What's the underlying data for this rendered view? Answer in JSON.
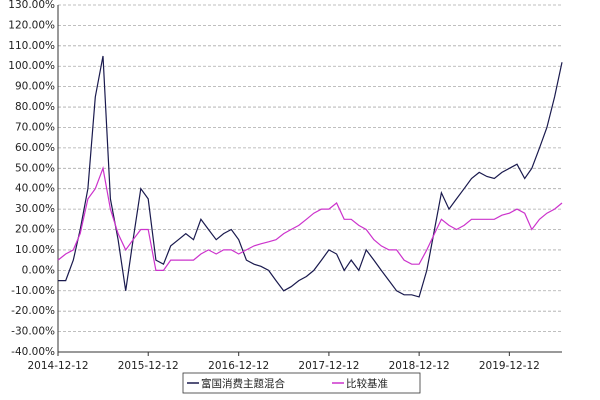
{
  "chart_data": {
    "type": "line",
    "x": [
      "2014-12-12",
      "2015-01-12",
      "2015-02-12",
      "2015-03-12",
      "2015-04-12",
      "2015-05-12",
      "2015-06-12",
      "2015-07-12",
      "2015-08-12",
      "2015-09-12",
      "2015-10-12",
      "2015-11-12",
      "2015-12-12",
      "2016-01-12",
      "2016-02-12",
      "2016-03-12",
      "2016-04-12",
      "2016-05-12",
      "2016-06-12",
      "2016-07-12",
      "2016-08-12",
      "2016-09-12",
      "2016-10-12",
      "2016-11-12",
      "2016-12-12",
      "2017-01-12",
      "2017-02-12",
      "2017-03-12",
      "2017-04-12",
      "2017-05-12",
      "2017-06-12",
      "2017-07-12",
      "2017-08-12",
      "2017-09-12",
      "2017-10-12",
      "2017-11-12",
      "2017-12-12",
      "2018-01-12",
      "2018-02-12",
      "2018-03-12",
      "2018-04-12",
      "2018-05-12",
      "2018-06-12",
      "2018-07-12",
      "2018-08-12",
      "2018-09-12",
      "2018-10-12",
      "2018-11-12",
      "2018-12-12",
      "2019-01-12",
      "2019-02-12",
      "2019-03-12",
      "2019-04-12",
      "2019-05-12",
      "2019-06-12",
      "2019-07-12",
      "2019-08-12",
      "2019-09-12",
      "2019-10-12",
      "2019-11-12",
      "2019-12-12",
      "2020-01-12",
      "2020-02-12",
      "2020-03-12",
      "2020-04-12",
      "2020-05-12",
      "2020-06-12",
      "2020-07-12"
    ],
    "series": [
      {
        "name": "富国消费主题混合",
        "color": "#1a1a4e",
        "values": [
          -5,
          -5,
          5,
          20,
          40,
          85,
          105,
          35,
          15,
          -10,
          15,
          40,
          35,
          5,
          3,
          12,
          15,
          18,
          15,
          25,
          20,
          15,
          18,
          20,
          15,
          5,
          3,
          2,
          0,
          -5,
          -10,
          -8,
          -5,
          -3,
          0,
          5,
          10,
          8,
          0,
          5,
          0,
          10,
          5,
          0,
          -5,
          -10,
          -12,
          -12,
          -13,
          0,
          20,
          38,
          30,
          35,
          40,
          45,
          48,
          46,
          45,
          48,
          50,
          52,
          45,
          50,
          60,
          70,
          85,
          102
        ]
      },
      {
        "name": "比较基准",
        "color": "#cc33cc",
        "values": [
          5,
          8,
          10,
          18,
          35,
          40,
          50,
          30,
          18,
          10,
          15,
          20,
          20,
          0,
          0,
          5,
          5,
          5,
          5,
          8,
          10,
          8,
          10,
          10,
          8,
          10,
          12,
          13,
          14,
          15,
          18,
          20,
          22,
          25,
          28,
          30,
          30,
          33,
          25,
          25,
          22,
          20,
          15,
          12,
          10,
          10,
          5,
          3,
          3,
          10,
          18,
          25,
          22,
          20,
          22,
          25,
          25,
          25,
          25,
          27,
          28,
          30,
          28,
          20,
          25,
          28,
          30,
          33
        ]
      }
    ],
    "xlim": [
      "2014-12-12",
      "2020-07-12"
    ],
    "xticks": [
      "2014-12-12",
      "2015-12-12",
      "2016-12-12",
      "2017-12-12",
      "2018-12-12",
      "2019-12-12"
    ],
    "ylim": [
      -40,
      130
    ],
    "yticks": [
      {
        "value": -40,
        "label": "-40.00%"
      },
      {
        "value": -30,
        "label": "-30.00%"
      },
      {
        "value": -20,
        "label": "-20.00%"
      },
      {
        "value": -10,
        "label": "-10.00%"
      },
      {
        "value": 0,
        "label": "0.00%"
      },
      {
        "value": 10,
        "label": "10.00%"
      },
      {
        "value": 20,
        "label": "20.00%"
      },
      {
        "value": 30,
        "label": "30.00%"
      },
      {
        "value": 40,
        "label": "40.00%"
      },
      {
        "value": 50,
        "label": "50.00%"
      },
      {
        "value": 60,
        "label": "60.00%"
      },
      {
        "value": 70,
        "label": "70.00%"
      },
      {
        "value": 80,
        "label": "80.00%"
      },
      {
        "value": 90,
        "label": "90.00%"
      },
      {
        "value": 100,
        "label": "100.00%"
      },
      {
        "value": 110,
        "label": "110.00%"
      },
      {
        "value": 120,
        "label": "120.00%"
      },
      {
        "value": 130,
        "label": "130.00%"
      }
    ],
    "grid": true
  }
}
